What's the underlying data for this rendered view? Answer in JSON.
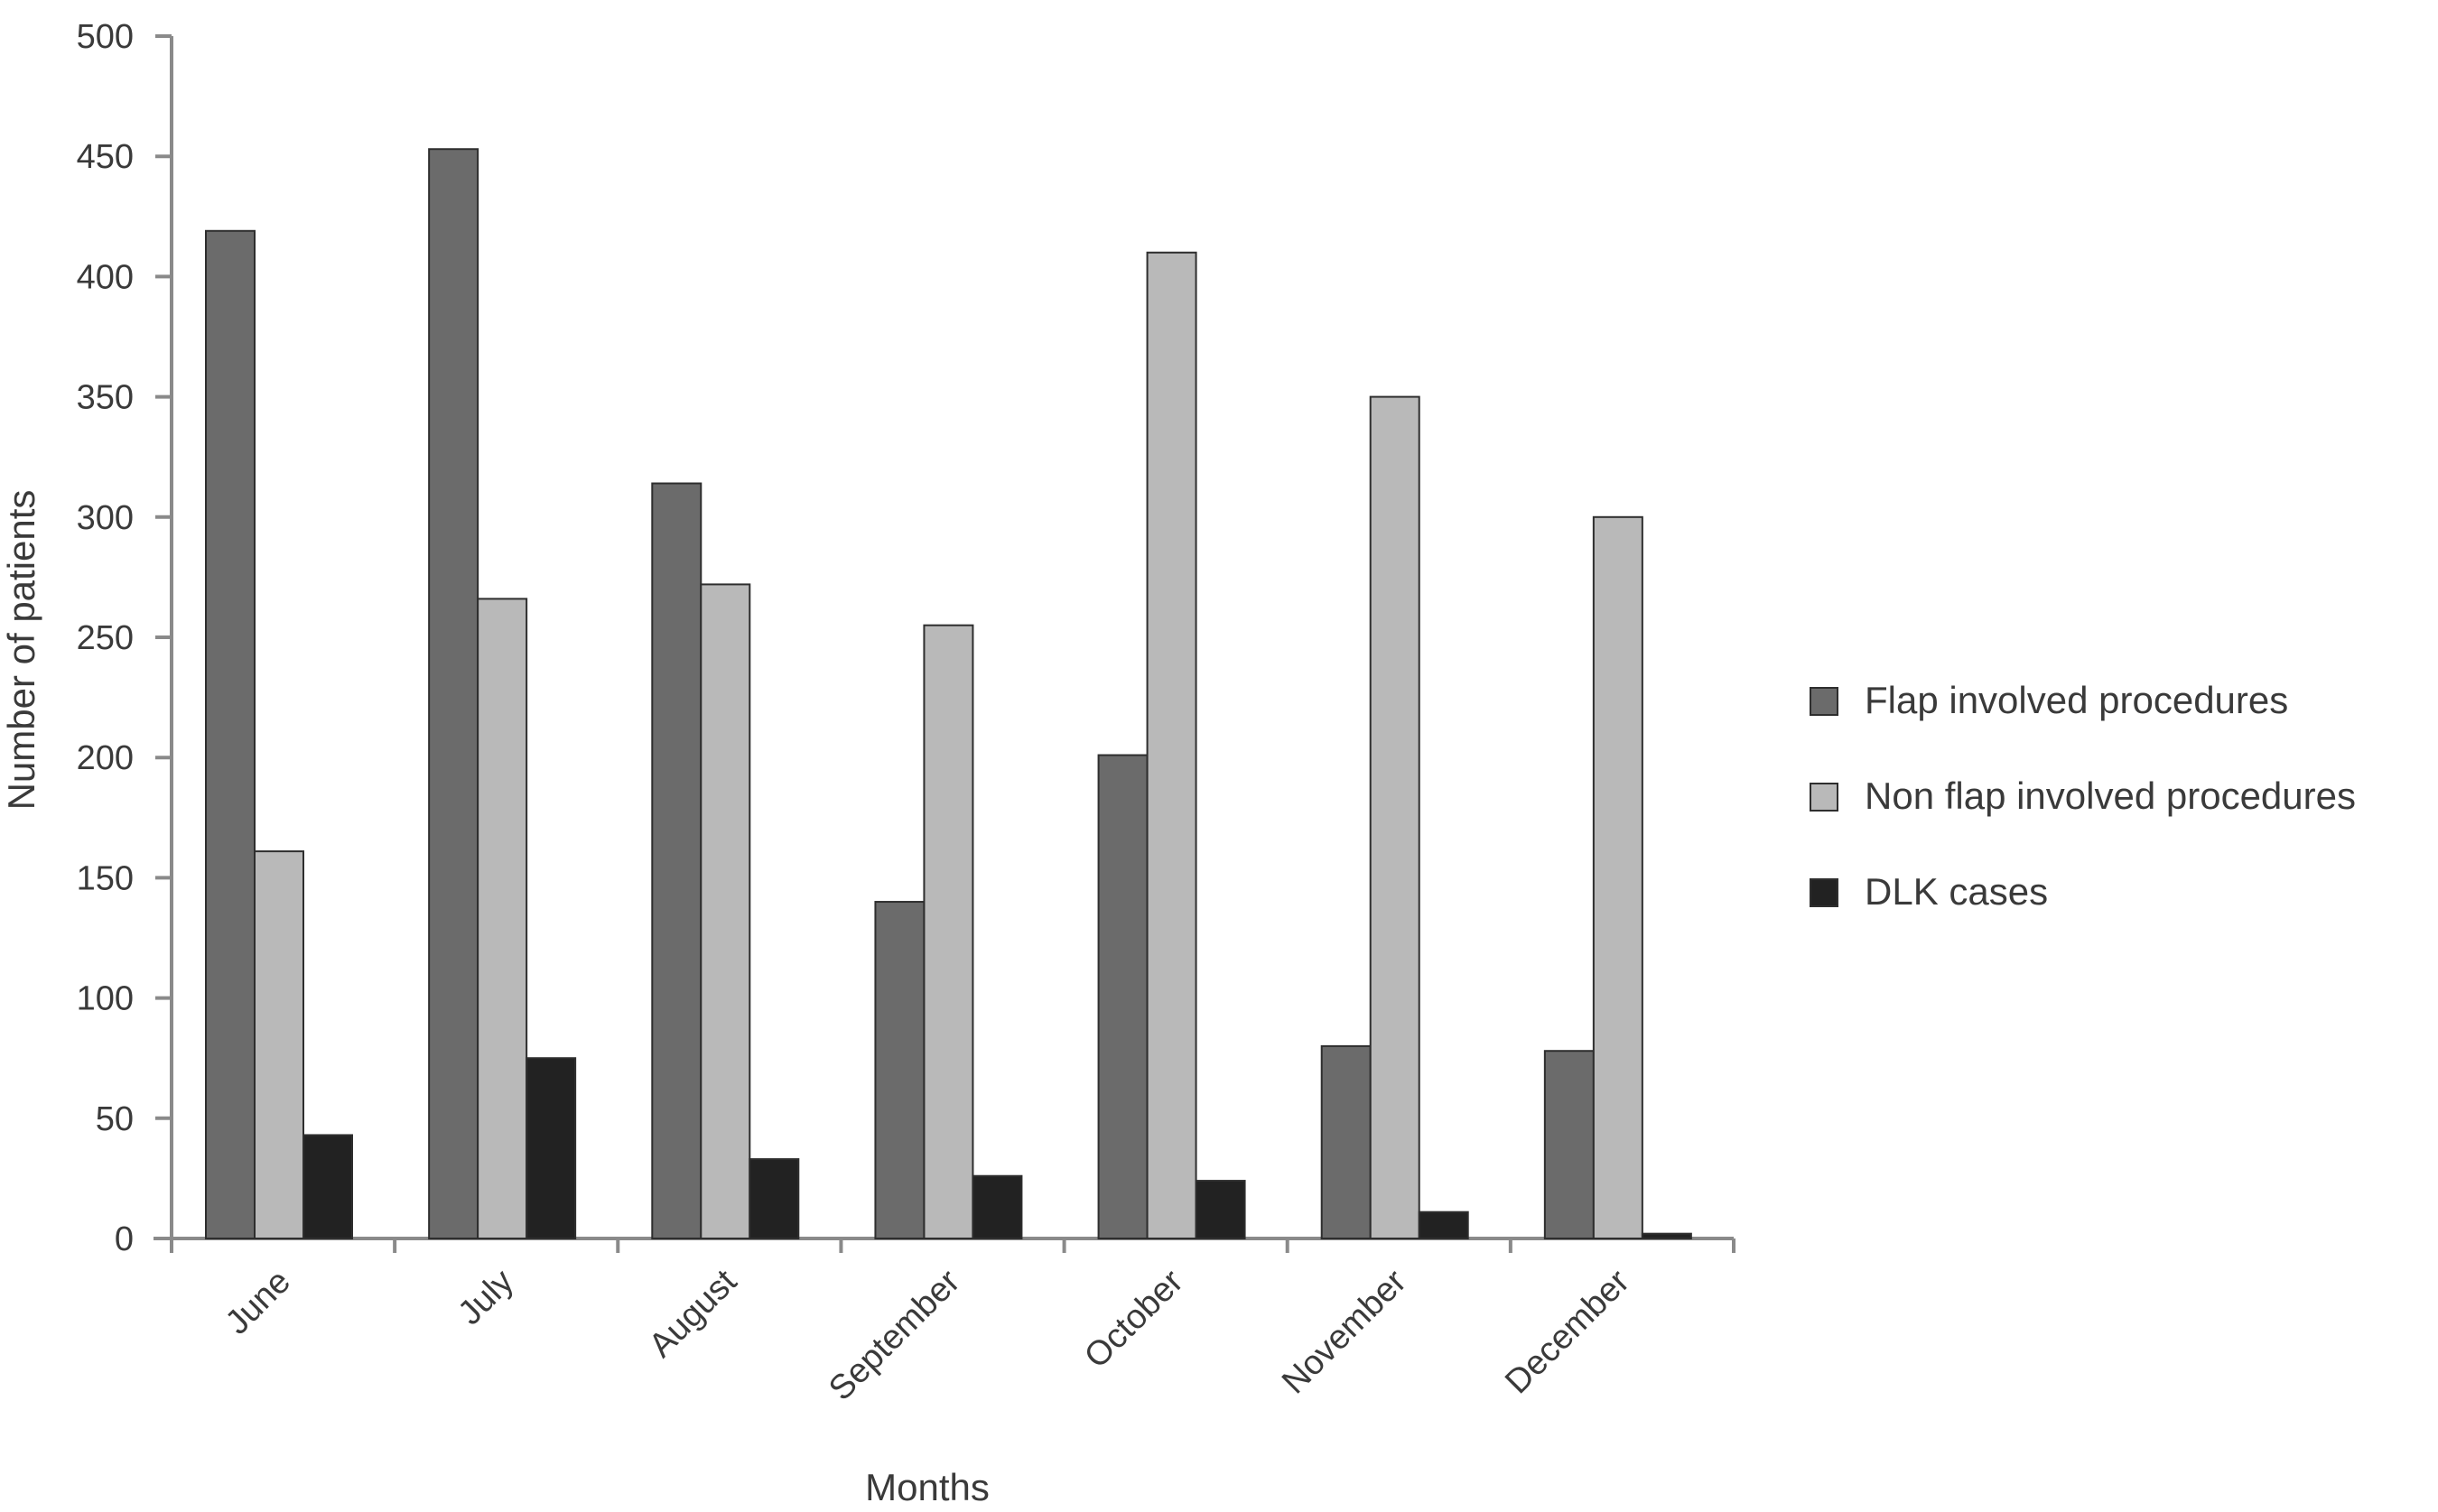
{
  "chart_data": {
    "type": "bar",
    "title": "",
    "xlabel": "Months",
    "ylabel": "Number of patients",
    "ylim": [
      0,
      500
    ],
    "yticks": [
      0,
      50,
      100,
      150,
      200,
      250,
      300,
      350,
      400,
      450,
      500
    ],
    "grid": false,
    "legend_position": "right",
    "categories": [
      "June",
      "July",
      "August",
      "September",
      "October",
      "November",
      "December"
    ],
    "series": [
      {
        "name": "Flap involved procedures",
        "color": "#6b6b6b",
        "values": [
          419,
          453,
          314,
          140,
          201,
          80,
          78
        ]
      },
      {
        "name": "Non flap involved procedures",
        "color": "#b9b9b9",
        "values": [
          161,
          266,
          272,
          255,
          410,
          350,
          300
        ]
      },
      {
        "name": "DLK cases",
        "color": "#222222",
        "values": [
          43,
          75,
          33,
          26,
          24,
          11,
          2
        ]
      }
    ]
  }
}
